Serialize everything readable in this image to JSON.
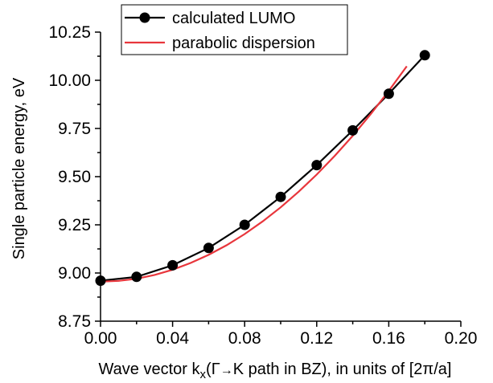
{
  "chart_data": {
    "type": "line",
    "title": "",
    "xlabel": {
      "prefix": "Wave vector k",
      "sub": "x",
      "middle_open": "(",
      "gamma": "Γ",
      "arrow": "→",
      "middle_rest": "K path in BZ), in units of [2",
      "pi": "π",
      "suffix": "/a]"
    },
    "ylabel": "Single particle energy, eV",
    "xlim": [
      0.0,
      0.2
    ],
    "ylim": [
      8.75,
      10.25
    ],
    "xticks": [
      "0.00",
      "0.04",
      "0.08",
      "0.12",
      "0.16",
      "0.20"
    ],
    "yticks": [
      "8.75",
      "9.00",
      "9.25",
      "9.50",
      "9.75",
      "10.00",
      "10.25"
    ],
    "series": [
      {
        "name": "calculated LUMO",
        "style": "line-markers",
        "color": "#000000",
        "x": [
          0.0,
          0.02,
          0.04,
          0.06,
          0.08,
          0.1,
          0.12,
          0.14,
          0.16,
          0.18
        ],
        "y": [
          8.96,
          8.98,
          9.04,
          9.13,
          9.25,
          9.395,
          9.56,
          9.74,
          9.93,
          10.13
        ]
      },
      {
        "name": "parabolic dispersion",
        "style": "line",
        "color": "#e8363c",
        "x": [
          0.0,
          0.01,
          0.02,
          0.03,
          0.04,
          0.05,
          0.06,
          0.07,
          0.08,
          0.09,
          0.1,
          0.11,
          0.12,
          0.13,
          0.14,
          0.15,
          0.16,
          0.17
        ],
        "y": [
          8.955,
          8.959,
          8.97,
          8.99,
          9.017,
          9.052,
          9.094,
          9.144,
          9.202,
          9.268,
          9.341,
          9.422,
          9.511,
          9.608,
          9.712,
          9.825,
          9.945,
          10.073
        ]
      }
    ],
    "legend": {
      "position": "top-left"
    }
  }
}
